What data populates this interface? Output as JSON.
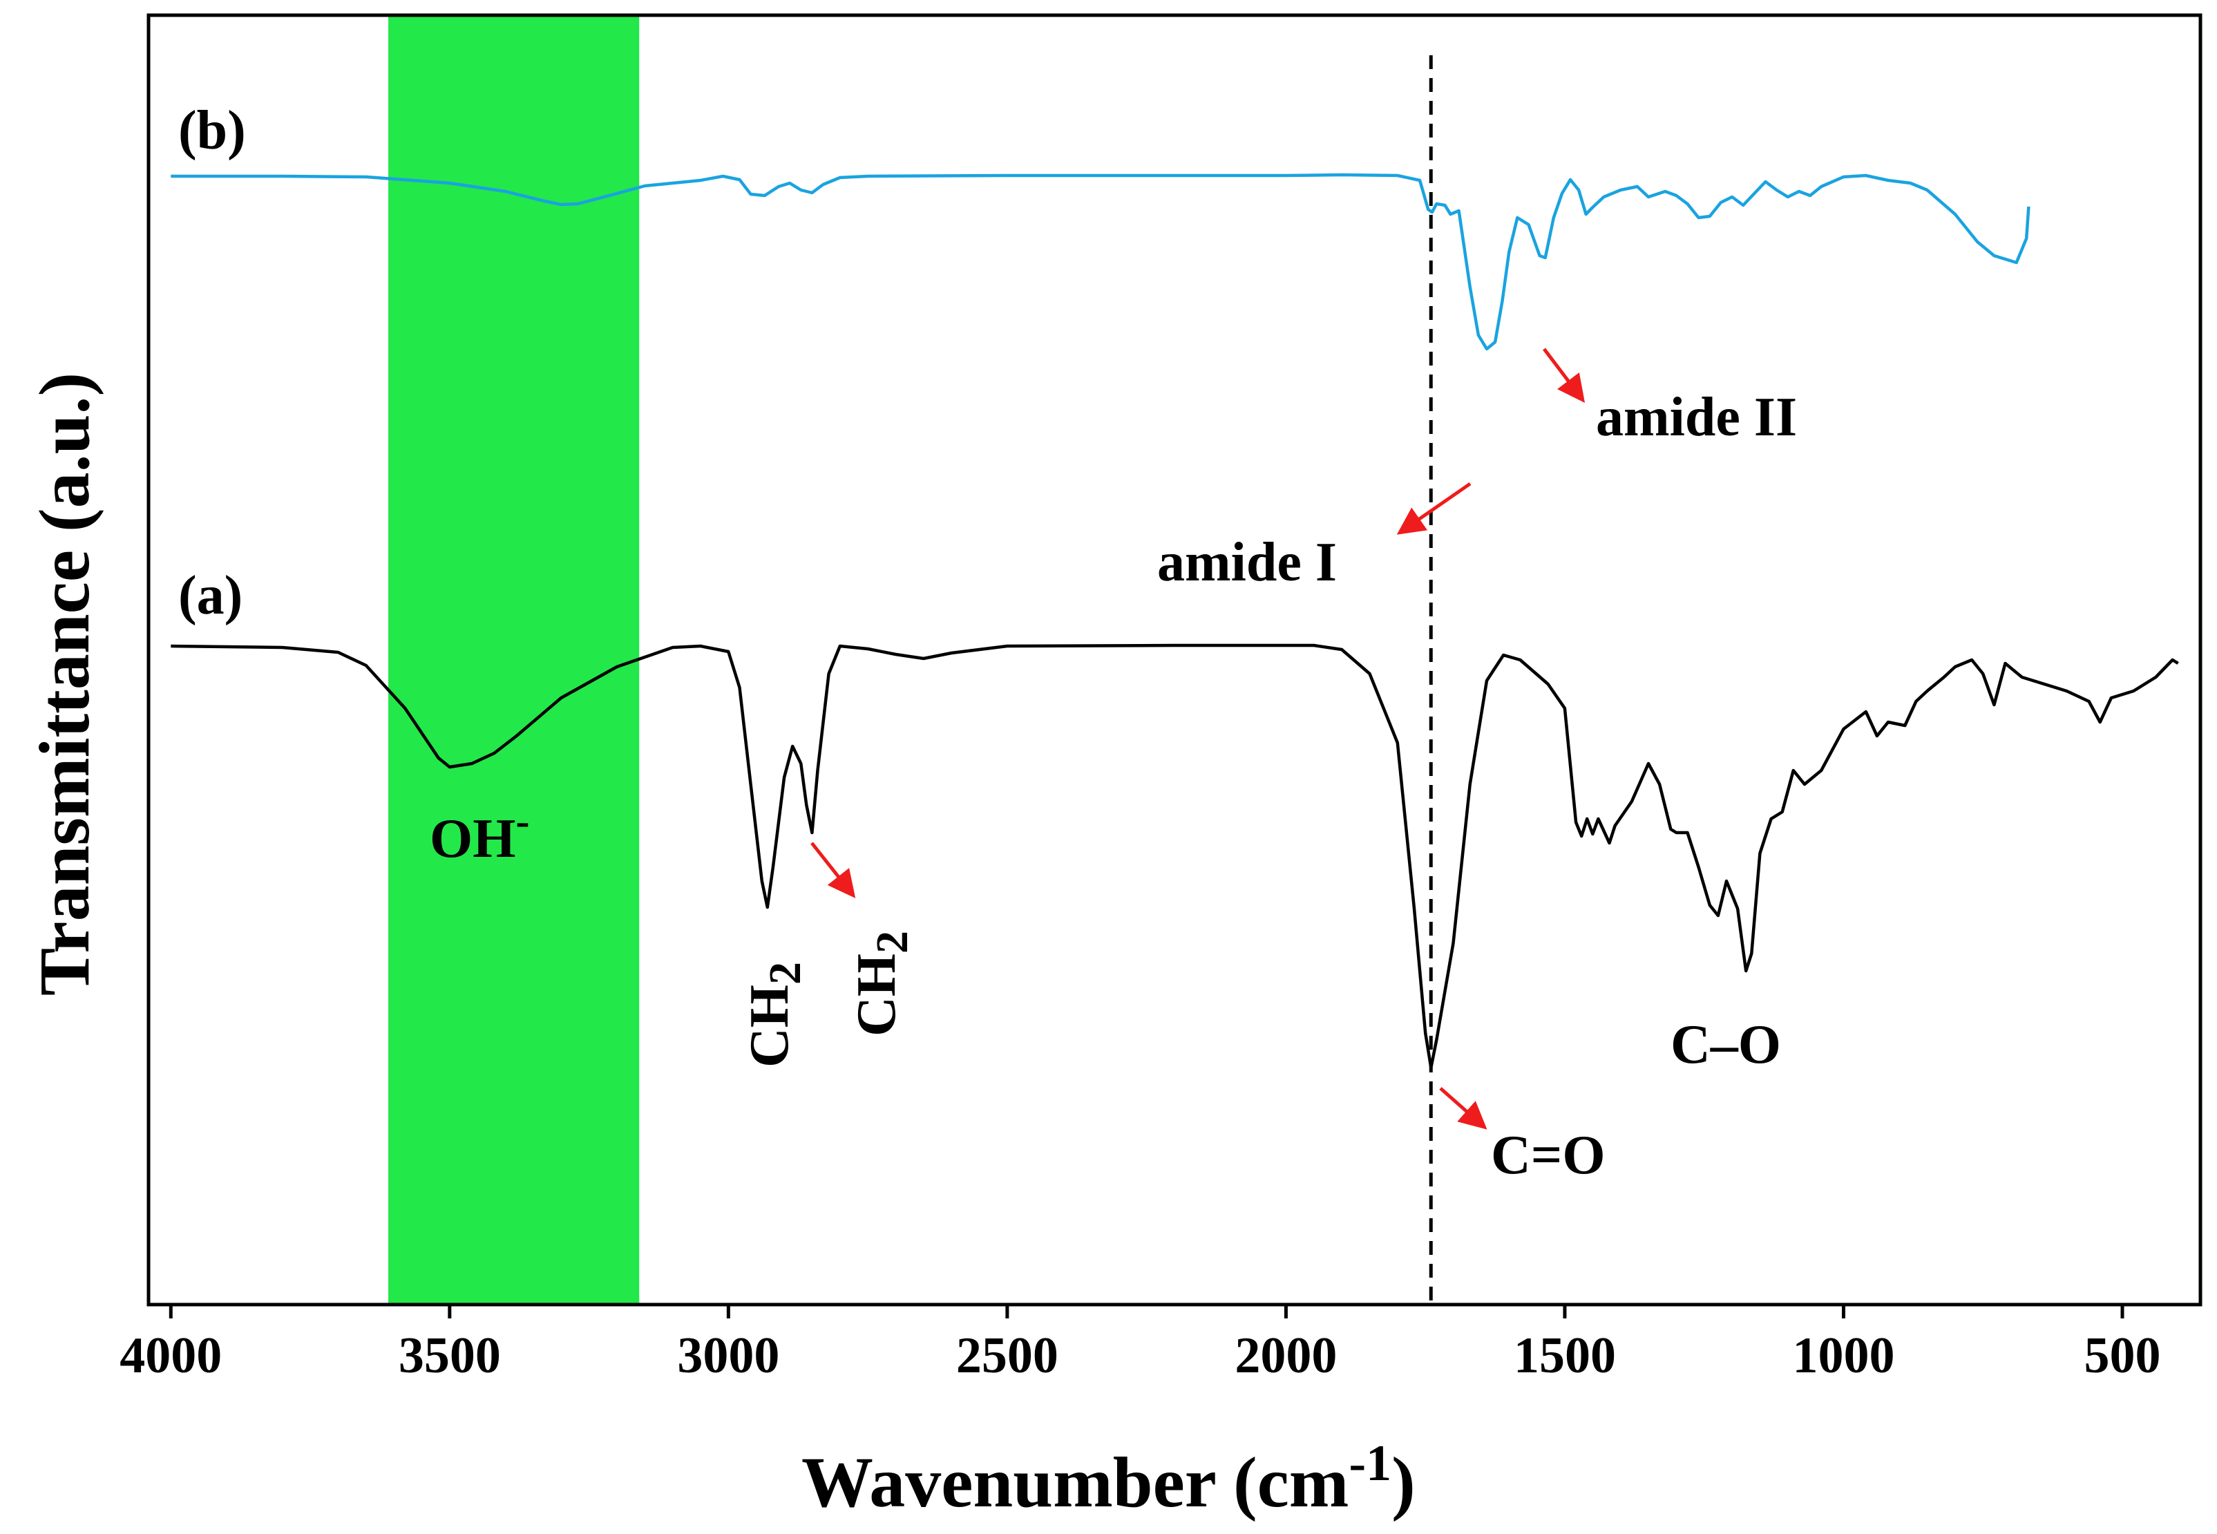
{
  "chart_data": {
    "type": "line",
    "xlabel": "Wavenumber (cm",
    "xlabel_sup": "-1",
    "xlabel_close": ")",
    "ylabel": "Transmittance (a.u.)",
    "xlim": [
      4040,
      360
    ],
    "x_reversed": true,
    "y_ticks_shown": false,
    "xticks": [
      4000,
      3500,
      3000,
      2500,
      2000,
      1500,
      1000,
      500
    ],
    "xtick_labels": [
      "4000",
      "3500",
      "3000",
      "2500",
      "2000",
      "1500",
      "1000",
      "500"
    ],
    "highlight_band": {
      "from": 3610,
      "to": 3160,
      "color": "#22e84a",
      "meaning": "OH- region"
    },
    "reference_line": {
      "x": 1740,
      "style": "dashed",
      "color": "#000000"
    },
    "series": [
      {
        "name": "(b)",
        "color": "#1aa3e0",
        "offset": 0,
        "points": [
          [
            4000,
            0
          ],
          [
            3800,
            0
          ],
          [
            3650,
            -1
          ],
          [
            3500,
            -10
          ],
          [
            3400,
            -22
          ],
          [
            3330,
            -36
          ],
          [
            3300,
            -41
          ],
          [
            3270,
            -40
          ],
          [
            3200,
            -25
          ],
          [
            3150,
            -14
          ],
          [
            3100,
            -10
          ],
          [
            3050,
            -6
          ],
          [
            3010,
            0
          ],
          [
            2980,
            -5
          ],
          [
            2960,
            -26
          ],
          [
            2935,
            -28
          ],
          [
            2910,
            -15
          ],
          [
            2890,
            -10
          ],
          [
            2870,
            -20
          ],
          [
            2850,
            -24
          ],
          [
            2830,
            -12
          ],
          [
            2800,
            -2
          ],
          [
            2750,
            0
          ],
          [
            2500,
            1
          ],
          [
            2000,
            1
          ],
          [
            1900,
            2
          ],
          [
            1800,
            1
          ],
          [
            1760,
            -6
          ],
          [
            1745,
            -48
          ],
          [
            1738,
            -52
          ],
          [
            1730,
            -40
          ],
          [
            1715,
            -42
          ],
          [
            1705,
            -55
          ],
          [
            1690,
            -50
          ],
          [
            1670,
            -160
          ],
          [
            1655,
            -230
          ],
          [
            1640,
            -250
          ],
          [
            1625,
            -240
          ],
          [
            1612,
            -180
          ],
          [
            1600,
            -110
          ],
          [
            1585,
            -60
          ],
          [
            1565,
            -70
          ],
          [
            1545,
            -115
          ],
          [
            1535,
            -118
          ],
          [
            1520,
            -60
          ],
          [
            1505,
            -25
          ],
          [
            1490,
            -5
          ],
          [
            1475,
            -20
          ],
          [
            1462,
            -55
          ],
          [
            1450,
            -45
          ],
          [
            1430,
            -30
          ],
          [
            1400,
            -20
          ],
          [
            1370,
            -15
          ],
          [
            1350,
            -30
          ],
          [
            1320,
            -22
          ],
          [
            1300,
            -28
          ],
          [
            1280,
            -40
          ],
          [
            1260,
            -60
          ],
          [
            1240,
            -58
          ],
          [
            1220,
            -38
          ],
          [
            1200,
            -30
          ],
          [
            1180,
            -42
          ],
          [
            1160,
            -25
          ],
          [
            1140,
            -8
          ],
          [
            1120,
            -20
          ],
          [
            1100,
            -30
          ],
          [
            1080,
            -22
          ],
          [
            1060,
            -28
          ],
          [
            1040,
            -15
          ],
          [
            1000,
            -1
          ],
          [
            960,
            1
          ],
          [
            920,
            -6
          ],
          [
            880,
            -10
          ],
          [
            850,
            -20
          ],
          [
            800,
            -55
          ],
          [
            760,
            -95
          ],
          [
            730,
            -115
          ],
          [
            690,
            -125
          ],
          [
            672,
            -90
          ],
          [
            668,
            -44
          ]
        ]
      },
      {
        "name": "(a)",
        "color": "#000000",
        "offset": -680,
        "points": [
          [
            4000,
            0
          ],
          [
            3800,
            -2
          ],
          [
            3700,
            -9
          ],
          [
            3650,
            -28
          ],
          [
            3580,
            -90
          ],
          [
            3520,
            -162
          ],
          [
            3500,
            -175
          ],
          [
            3460,
            -170
          ],
          [
            3420,
            -155
          ],
          [
            3380,
            -130
          ],
          [
            3300,
            -75
          ],
          [
            3200,
            -30
          ],
          [
            3100,
            -2
          ],
          [
            3050,
            0
          ],
          [
            3000,
            -8
          ],
          [
            2980,
            -60
          ],
          [
            2960,
            -200
          ],
          [
            2940,
            -340
          ],
          [
            2930,
            -378
          ],
          [
            2920,
            -320
          ],
          [
            2900,
            -190
          ],
          [
            2885,
            -145
          ],
          [
            2870,
            -170
          ],
          [
            2860,
            -230
          ],
          [
            2850,
            -270
          ],
          [
            2840,
            -180
          ],
          [
            2820,
            -40
          ],
          [
            2800,
            0
          ],
          [
            2750,
            -4
          ],
          [
            2700,
            -12
          ],
          [
            2650,
            -18
          ],
          [
            2600,
            -10
          ],
          [
            2500,
            0
          ],
          [
            2200,
            1
          ],
          [
            1950,
            1
          ],
          [
            1900,
            -5
          ],
          [
            1850,
            -40
          ],
          [
            1800,
            -140
          ],
          [
            1770,
            -380
          ],
          [
            1750,
            -560
          ],
          [
            1740,
            -610
          ],
          [
            1730,
            -570
          ],
          [
            1700,
            -430
          ],
          [
            1670,
            -200
          ],
          [
            1640,
            -50
          ],
          [
            1610,
            -13
          ],
          [
            1580,
            -20
          ],
          [
            1530,
            -55
          ],
          [
            1500,
            -90
          ],
          [
            1480,
            -255
          ],
          [
            1470,
            -275
          ],
          [
            1460,
            -250
          ],
          [
            1450,
            -272
          ],
          [
            1440,
            -250
          ],
          [
            1420,
            -285
          ],
          [
            1410,
            -260
          ],
          [
            1380,
            -225
          ],
          [
            1350,
            -170
          ],
          [
            1330,
            -200
          ],
          [
            1310,
            -265
          ],
          [
            1300,
            -270
          ],
          [
            1280,
            -270
          ],
          [
            1260,
            -320
          ],
          [
            1240,
            -375
          ],
          [
            1225,
            -390
          ],
          [
            1210,
            -340
          ],
          [
            1190,
            -380
          ],
          [
            1175,
            -470
          ],
          [
            1165,
            -445
          ],
          [
            1150,
            -300
          ],
          [
            1130,
            -250
          ],
          [
            1110,
            -240
          ],
          [
            1090,
            -180
          ],
          [
            1070,
            -200
          ],
          [
            1040,
            -180
          ],
          [
            1000,
            -120
          ],
          [
            960,
            -95
          ],
          [
            940,
            -130
          ],
          [
            920,
            -110
          ],
          [
            890,
            -115
          ],
          [
            870,
            -80
          ],
          [
            850,
            -65
          ],
          [
            820,
            -45
          ],
          [
            800,
            -30
          ],
          [
            770,
            -20
          ],
          [
            750,
            -40
          ],
          [
            730,
            -85
          ],
          [
            710,
            -25
          ],
          [
            680,
            -45
          ],
          [
            640,
            -55
          ],
          [
            600,
            -65
          ],
          [
            560,
            -80
          ],
          [
            540,
            -110
          ],
          [
            520,
            -75
          ],
          [
            480,
            -65
          ],
          [
            440,
            -45
          ],
          [
            410,
            -20
          ],
          [
            400,
            -25
          ]
        ]
      }
    ],
    "series_labels": [
      "(b)",
      "(a)"
    ],
    "annotations": {
      "oh": {
        "text": "OH",
        "sup": "-"
      },
      "ch2_a": {
        "text": "CH",
        "sub": "2"
      },
      "ch2_b": {
        "text": "CH",
        "sub": "2"
      },
      "co_double": "C=O",
      "co_single": "C–O",
      "amide1": "amide I",
      "amide2": "amide II"
    },
    "arrow_color": "#ee1c1c"
  }
}
